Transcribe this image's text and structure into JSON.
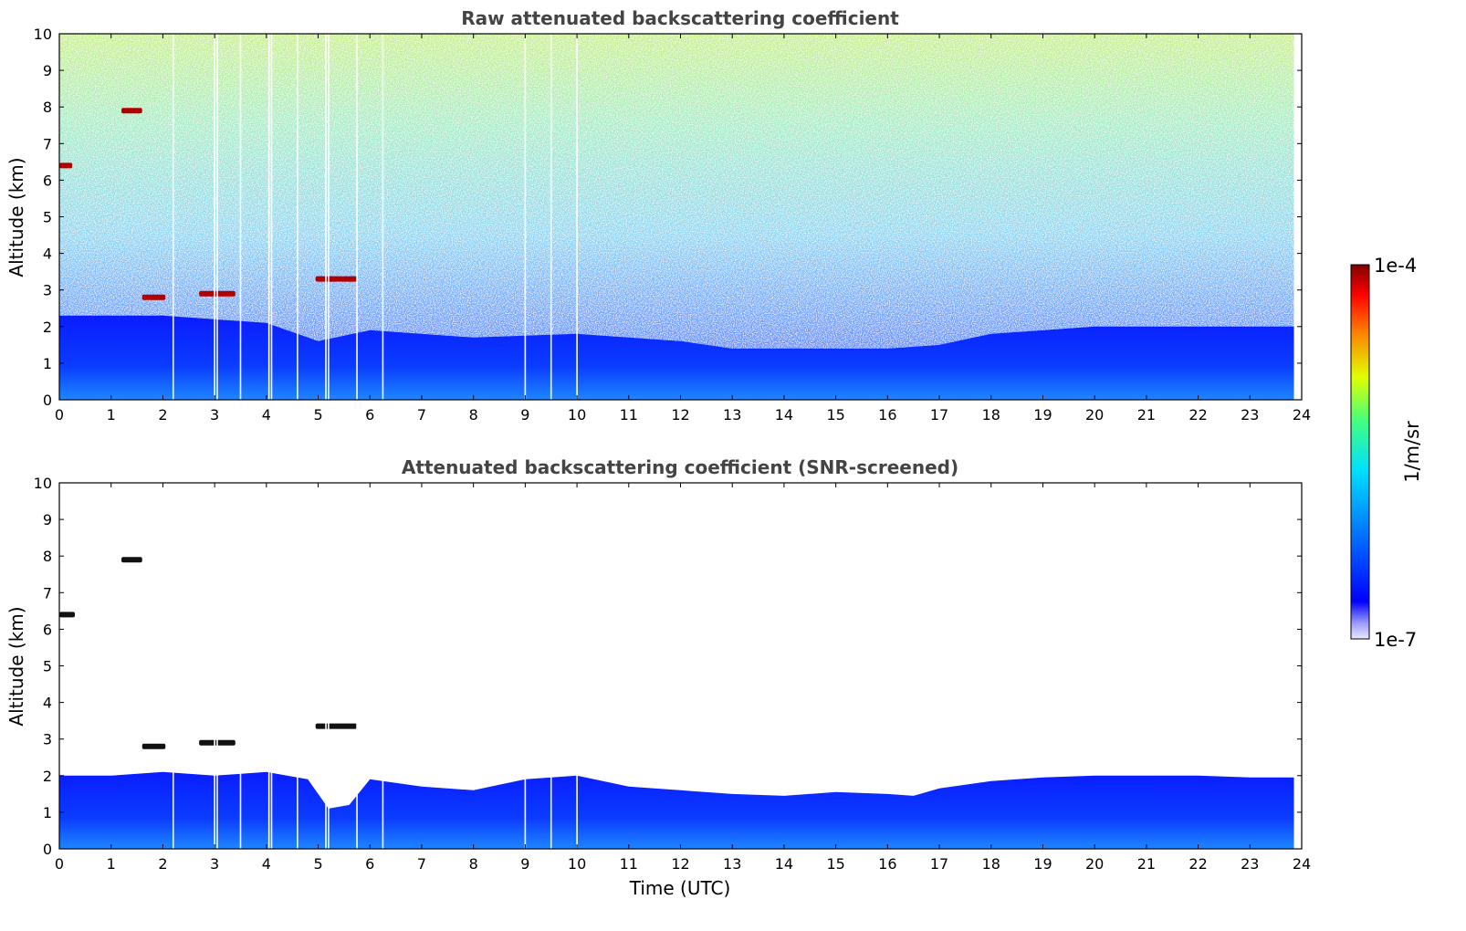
{
  "chart_data": [
    {
      "type": "heatmap",
      "title": "Raw attenuated backscattering coefficient",
      "xlabel": "",
      "ylabel": "Altitude (km)",
      "xlim": [
        0,
        24
      ],
      "ylim": [
        0,
        10
      ],
      "xticks": [
        0,
        1,
        2,
        3,
        4,
        5,
        6,
        7,
        8,
        9,
        10,
        11,
        12,
        13,
        14,
        15,
        16,
        17,
        18,
        19,
        20,
        21,
        22,
        23,
        24
      ],
      "yticks": [
        0,
        1,
        2,
        3,
        4,
        5,
        6,
        7,
        8,
        9,
        10
      ],
      "data_end_time": 23.85,
      "gaps_utc": [
        2.2,
        3.0,
        3.05,
        3.5,
        4.05,
        4.1,
        4.6,
        5.15,
        5.2,
        5.75,
        6.25,
        9.0,
        9.5,
        10.0
      ],
      "cloud_layers": [
        {
          "t_start": 0.0,
          "t_end": 0.25,
          "alt_km": 6.4
        },
        {
          "t_start": 1.2,
          "t_end": 1.6,
          "alt_km": 7.9
        },
        {
          "t_start": 1.6,
          "t_end": 2.05,
          "alt_km": 2.8
        },
        {
          "t_start": 2.7,
          "t_end": 3.4,
          "alt_km": 2.9
        },
        {
          "t_start": 4.95,
          "t_end": 5.75,
          "alt_km": 3.3
        }
      ],
      "boundary_layer_top_km": {
        "t": [
          0,
          2,
          4,
          5,
          6,
          8,
          10,
          12,
          13,
          14,
          16,
          17,
          18,
          20,
          23.85
        ],
        "alt": [
          2.3,
          2.3,
          2.1,
          1.6,
          1.9,
          1.7,
          1.8,
          1.6,
          1.4,
          1.4,
          1.4,
          1.5,
          1.8,
          2.0,
          2.0
        ]
      },
      "screened": false
    },
    {
      "type": "heatmap",
      "title": "Attenuated backscattering coefficient (SNR-screened)",
      "xlabel": "Time (UTC)",
      "ylabel": "Altitude (km)",
      "xlim": [
        0,
        24
      ],
      "ylim": [
        0,
        10
      ],
      "xticks": [
        0,
        1,
        2,
        3,
        4,
        5,
        6,
        7,
        8,
        9,
        10,
        11,
        12,
        13,
        14,
        15,
        16,
        17,
        18,
        19,
        20,
        21,
        22,
        23,
        24
      ],
      "yticks": [
        0,
        1,
        2,
        3,
        4,
        5,
        6,
        7,
        8,
        9,
        10
      ],
      "data_end_time": 23.85,
      "gaps_utc": [
        2.2,
        3.0,
        3.05,
        3.5,
        4.05,
        4.1,
        4.6,
        5.15,
        5.2,
        5.75,
        6.25,
        9.0,
        9.5,
        10.0
      ],
      "cloud_layers": [
        {
          "t_start": 0.0,
          "t_end": 0.3,
          "alt_km": 6.4
        },
        {
          "t_start": 1.2,
          "t_end": 1.6,
          "alt_km": 7.9
        },
        {
          "t_start": 1.6,
          "t_end": 2.05,
          "alt_km": 2.8
        },
        {
          "t_start": 2.7,
          "t_end": 3.4,
          "alt_km": 2.9
        },
        {
          "t_start": 4.95,
          "t_end": 5.75,
          "alt_km": 3.35
        }
      ],
      "boundary_layer_top_km": {
        "t": [
          0,
          1,
          2,
          3,
          4,
          4.8,
          5.2,
          5.6,
          6,
          7,
          8,
          9,
          10,
          11,
          12,
          13,
          14,
          15,
          16,
          16.5,
          17,
          18,
          19,
          20,
          21,
          22,
          23,
          23.85
        ],
        "alt": [
          2.0,
          2.0,
          2.1,
          2.0,
          2.1,
          1.9,
          1.1,
          1.2,
          1.9,
          1.7,
          1.6,
          1.9,
          2.0,
          1.7,
          1.6,
          1.5,
          1.45,
          1.55,
          1.5,
          1.45,
          1.65,
          1.85,
          1.95,
          2.0,
          2.0,
          2.0,
          1.95,
          1.95
        ]
      },
      "screened": true
    }
  ],
  "colorbar": {
    "label": "1/m/sr",
    "max_label": "1e-4",
    "min_label": "1e-7",
    "scale": "log",
    "colormap": "jet"
  },
  "colors": {
    "boundary_layer": "#0a2bff",
    "near_surface": "#1e7cff",
    "cloud": "#b00000",
    "cloud_screened": "#111111",
    "title": "#444444"
  }
}
